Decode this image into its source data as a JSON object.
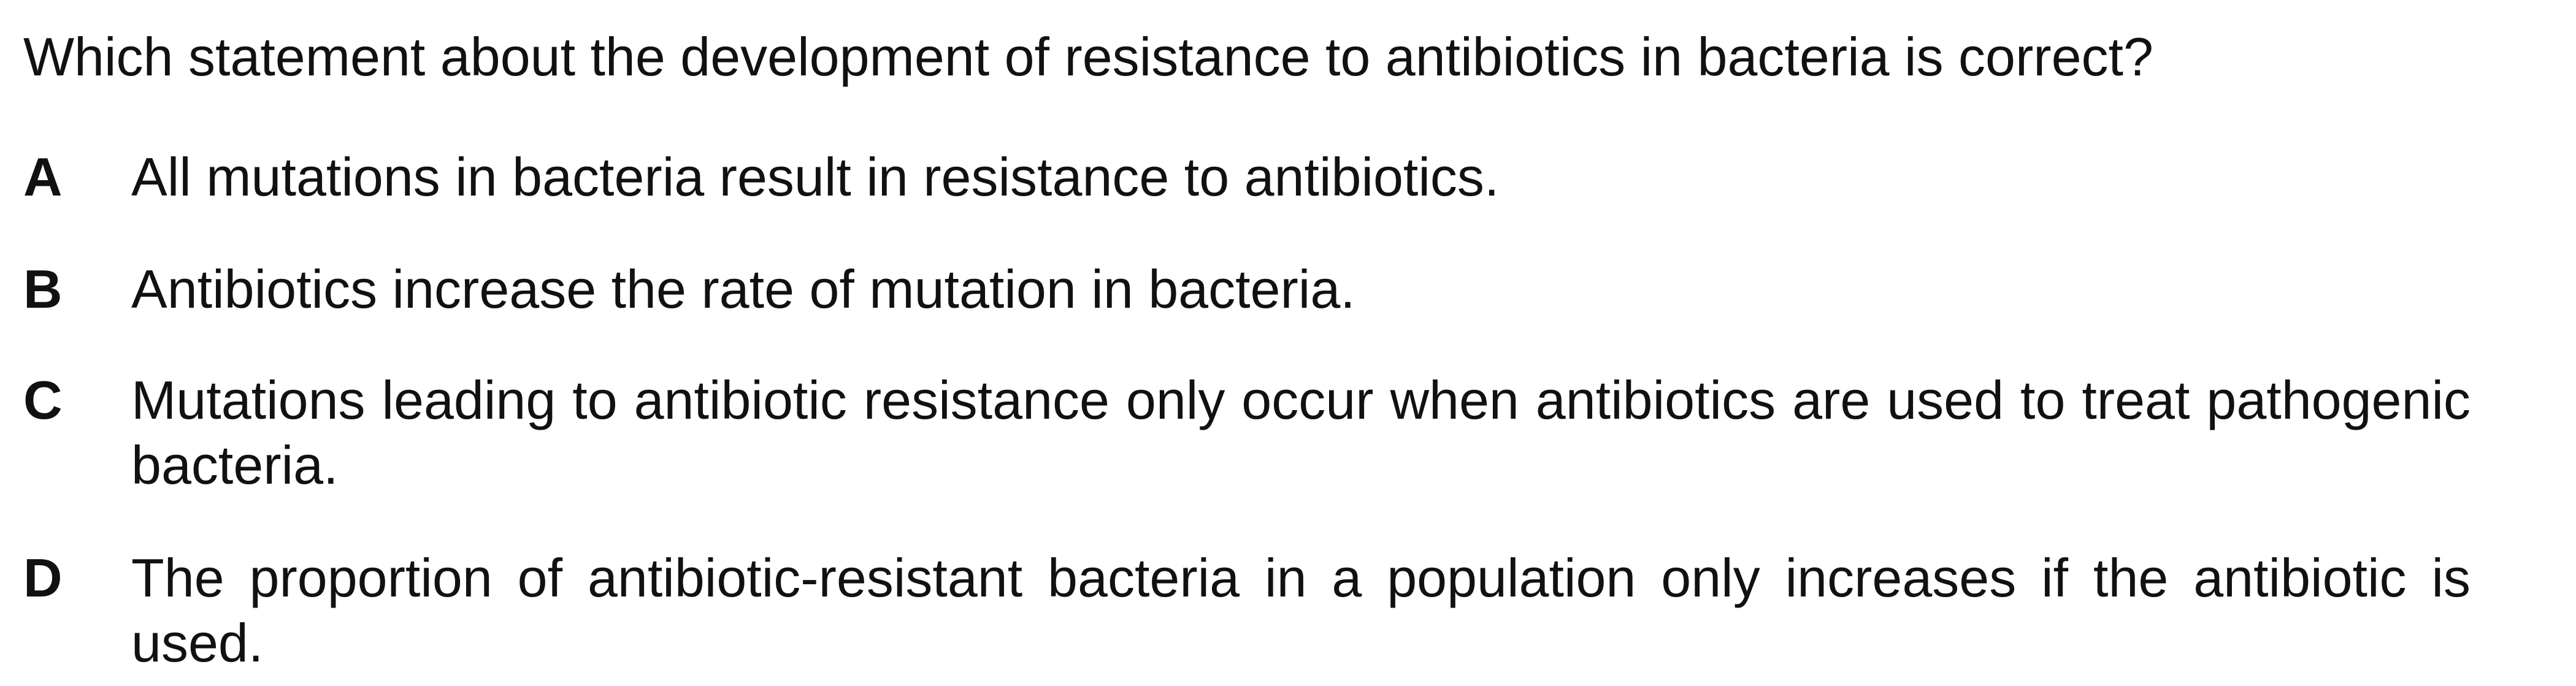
{
  "question": {
    "stem": "Which statement about the development of resistance to antibiotics in bacteria is correct?"
  },
  "options": [
    {
      "letter": "A",
      "text": "All mutations in bacteria result in resistance to antibiotics."
    },
    {
      "letter": "B",
      "text": "Antibiotics increase the rate of mutation in bacteria."
    },
    {
      "letter": "C",
      "text": "Mutations leading to antibiotic resistance only occur when antibiotics are used to treat pathogenic bacteria."
    },
    {
      "letter": "D",
      "text": "The proportion of antibiotic-resistant bacteria in a population only increases if the antibiotic is used."
    }
  ]
}
